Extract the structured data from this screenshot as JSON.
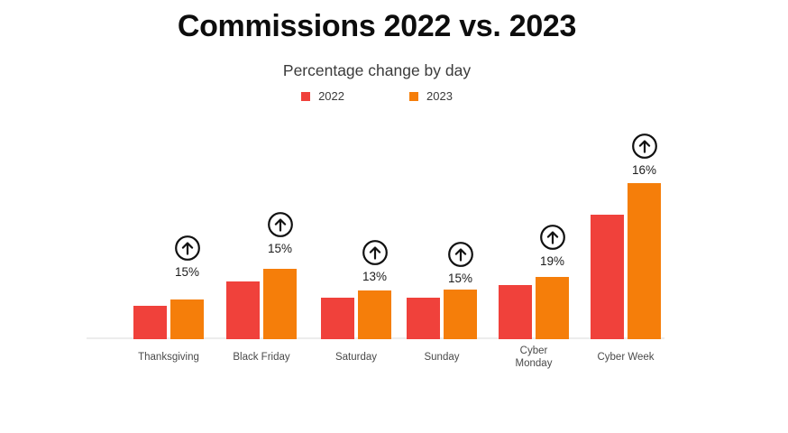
{
  "header": {
    "title": "Commissions 2022 vs. 2023",
    "subtitle": "Percentage change by day"
  },
  "legend": {
    "position": "top-center",
    "items": [
      {
        "label": "2022",
        "color": "#F0413B"
      },
      {
        "label": "2023",
        "color": "#F57E0A"
      }
    ]
  },
  "chart_data": {
    "type": "bar",
    "title": "Commissions 2022 vs. 2023",
    "subtitle": "Percentage change by day",
    "categories": [
      "Thanksgiving",
      "Black Friday",
      "Saturday",
      "Sunday",
      "Cyber Monday",
      "Cyber Week"
    ],
    "categories_display": [
      "Thanksgiving",
      "Black Friday",
      "Saturday",
      "Sunday",
      "Cyber\nMonday",
      "Cyber Week"
    ],
    "series": [
      {
        "name": "2022",
        "color": "#F0413B",
        "values": [
          37,
          64,
          46,
          46,
          60,
          138
        ]
      },
      {
        "name": "2023",
        "color": "#F57E0A",
        "values": [
          44,
          78,
          54,
          55,
          69,
          173
        ]
      }
    ],
    "annotations": [
      {
        "category": "Thanksgiving",
        "label": "15%",
        "icon": "arrow-up-circle"
      },
      {
        "category": "Black Friday",
        "label": "15%",
        "icon": "arrow-up-circle"
      },
      {
        "category": "Saturday",
        "label": "13%",
        "icon": "arrow-up-circle"
      },
      {
        "category": "Sunday",
        "label": "15%",
        "icon": "arrow-up-circle"
      },
      {
        "category": "Cyber Monday",
        "label": "19%",
        "icon": "arrow-up-circle"
      },
      {
        "category": "Cyber Week",
        "label": "16%",
        "icon": "arrow-up-circle"
      }
    ],
    "xlabel": "",
    "ylabel": "",
    "y_axis_visible": false,
    "grid": false,
    "legend_position": "top",
    "ylim": [
      0,
      180
    ],
    "value_note": "values are relative bar heights; no numeric y-axis is shown, annotations give % change"
  }
}
